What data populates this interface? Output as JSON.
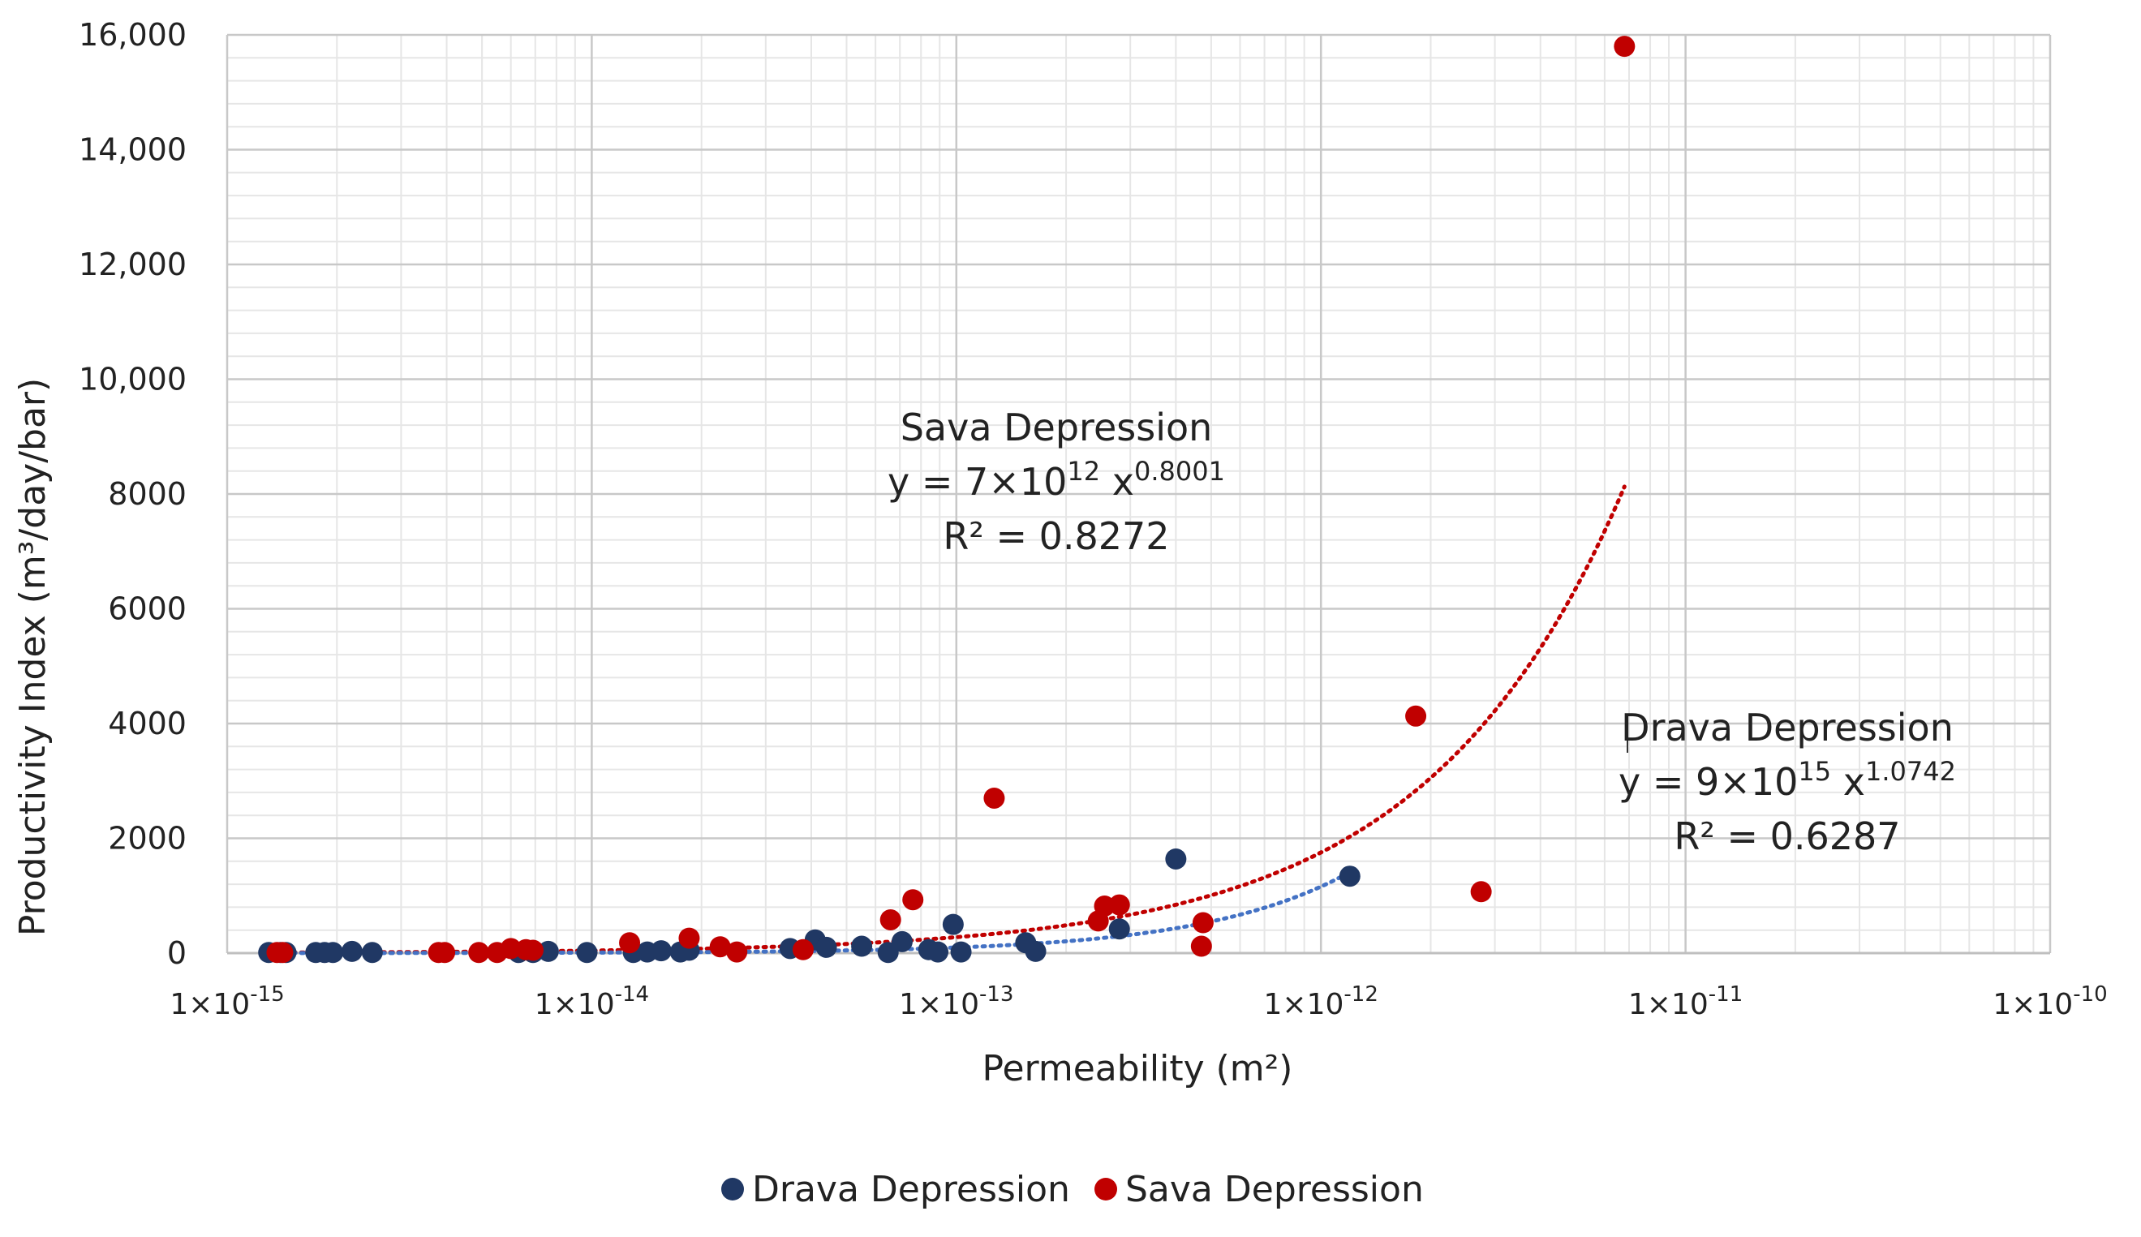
{
  "chart_data": {
    "type": "scatter",
    "title": "",
    "xlabel": "Permeability (m²)",
    "ylabel": "Productivity Index (m³/day/bar)",
    "xscale": "log",
    "xlim": [
      1e-15,
      1e-10
    ],
    "ylim": [
      0,
      16000
    ],
    "x_tick_labels": [
      "1×10⁻¹⁵",
      "1×10⁻¹⁴",
      "1×10⁻¹³",
      "1×10⁻¹²",
      "1×10⁻¹¹",
      "1×10⁻¹⁰"
    ],
    "y_tick_labels": [
      "0",
      "2000",
      "4000",
      "6000",
      "8000",
      "10,000",
      "12,000",
      "14,000",
      "16,000"
    ],
    "y_tick_values": [
      0,
      2000,
      4000,
      6000,
      8000,
      10000,
      12000,
      14000,
      16000
    ],
    "grid": true,
    "legend_position": "bottom",
    "series": [
      {
        "name": "Drava Depression",
        "color": "#203864",
        "points": [
          [
            1.3e-15,
            10
          ],
          [
            1.4e-15,
            10
          ],
          [
            1.45e-15,
            10
          ],
          [
            1.75e-15,
            10
          ],
          [
            1.85e-15,
            10
          ],
          [
            1.95e-15,
            10
          ],
          [
            2.2e-15,
            30
          ],
          [
            2.5e-15,
            10
          ],
          [
            6.3e-15,
            10
          ],
          [
            6.9e-15,
            10
          ],
          [
            7.6e-15,
            30
          ],
          [
            9.7e-15,
            10
          ],
          [
            1.3e-14,
            10
          ],
          [
            1.42e-14,
            20
          ],
          [
            1.55e-14,
            40
          ],
          [
            1.75e-14,
            20
          ],
          [
            1.85e-14,
            50
          ],
          [
            3.5e-14,
            80
          ],
          [
            4.1e-14,
            230
          ],
          [
            4.4e-14,
            100
          ],
          [
            5.5e-14,
            120
          ],
          [
            6.5e-14,
            10
          ],
          [
            7.1e-14,
            200
          ],
          [
            8.4e-14,
            60
          ],
          [
            8.9e-14,
            20
          ],
          [
            9.8e-14,
            500
          ],
          [
            1.03e-13,
            20
          ],
          [
            1.55e-13,
            180
          ],
          [
            1.65e-13,
            30
          ],
          [
            2.8e-13,
            420
          ],
          [
            4e-13,
            1640
          ],
          [
            1.2e-12,
            1340
          ]
        ]
      },
      {
        "name": "Sava Depression",
        "color": "#C00000",
        "points": [
          [
            1.37e-15,
            10
          ],
          [
            1.42e-15,
            10
          ],
          [
            3.8e-15,
            10
          ],
          [
            3.95e-15,
            10
          ],
          [
            4.9e-15,
            10
          ],
          [
            5.5e-15,
            10
          ],
          [
            6e-15,
            80
          ],
          [
            6.6e-15,
            60
          ],
          [
            6.9e-15,
            50
          ],
          [
            1.27e-14,
            180
          ],
          [
            1.85e-14,
            260
          ],
          [
            2.25e-14,
            110
          ],
          [
            2.5e-14,
            20
          ],
          [
            3.8e-14,
            60
          ],
          [
            6.6e-14,
            580
          ],
          [
            7.6e-14,
            930
          ],
          [
            1.27e-13,
            2700
          ],
          [
            2.45e-13,
            560
          ],
          [
            2.55e-13,
            820
          ],
          [
            2.8e-13,
            840
          ],
          [
            4.7e-13,
            120
          ],
          [
            4.75e-13,
            530
          ],
          [
            1.82e-12,
            4130
          ],
          [
            2.75e-12,
            1070
          ],
          [
            6.8e-12,
            15800
          ]
        ]
      }
    ],
    "trendlines": [
      {
        "series": "Sava Depression",
        "type": "power",
        "coefficient": 7000000000000.0,
        "exponent": 0.8001,
        "x_range": [
          1.3e-15,
          6.8e-12
        ],
        "color": "#C00000"
      },
      {
        "series": "Drava Depression",
        "type": "power",
        "coefficient": 9000000000000000.0,
        "exponent": 1.0742,
        "x_range": [
          1.3e-15,
          1.2e-12
        ],
        "color": "#4472C4"
      }
    ],
    "annotations": [
      {
        "title": "Sava Depression",
        "equation_prefix": "y = 7×10",
        "equation_exp1": "12",
        "equation_mid": " x",
        "equation_exp2": "0.8001",
        "r2": "R² = 0.8272"
      },
      {
        "title": "Drava Depression",
        "equation_prefix": "y = 9×10",
        "equation_exp1": "15",
        "equation_mid": " x",
        "equation_exp2": "1.0742",
        "r2": "R² = 0.6287"
      }
    ]
  }
}
